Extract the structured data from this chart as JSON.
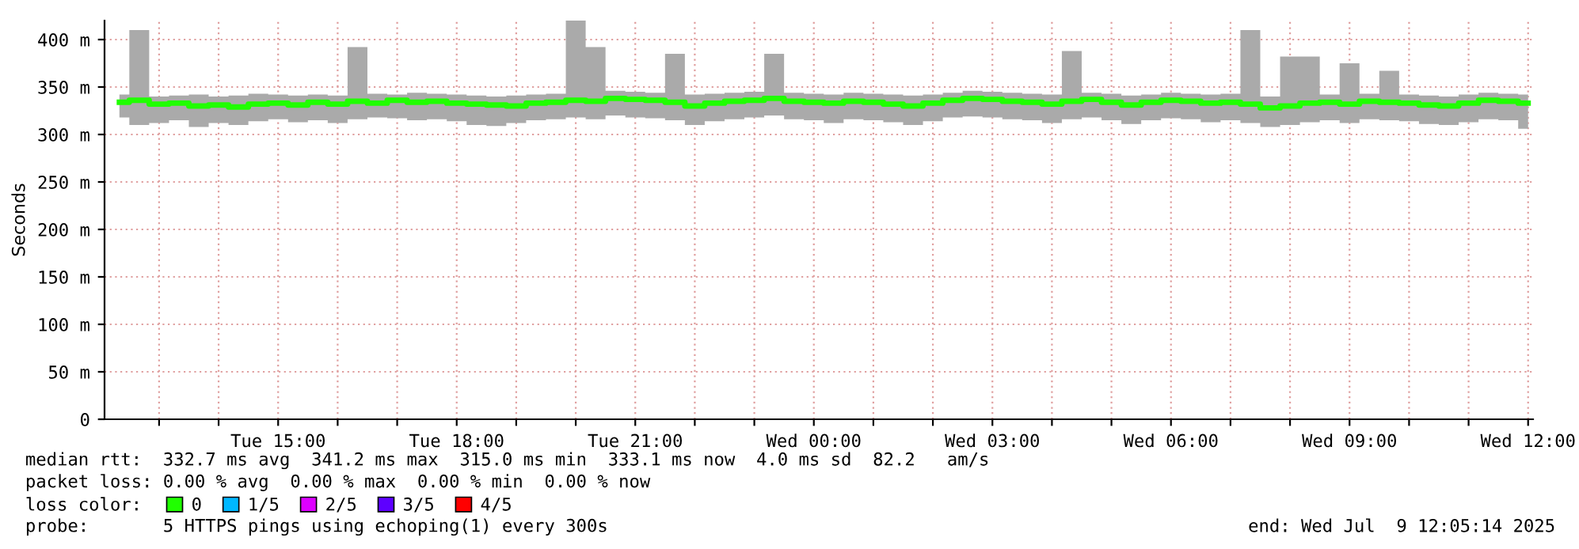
{
  "chart_data": {
    "type": "step",
    "ylabel": "Seconds",
    "x": [
      "2025-07-08T12:20",
      "2025-07-08T12:40",
      "2025-07-08T13:00",
      "2025-07-08T13:20",
      "2025-07-08T13:40",
      "2025-07-08T14:00",
      "2025-07-08T14:20",
      "2025-07-08T14:40",
      "2025-07-08T15:00",
      "2025-07-08T15:20",
      "2025-07-08T15:40",
      "2025-07-08T16:00",
      "2025-07-08T16:20",
      "2025-07-08T16:40",
      "2025-07-08T17:00",
      "2025-07-08T17:20",
      "2025-07-08T17:40",
      "2025-07-08T18:00",
      "2025-07-08T18:20",
      "2025-07-08T18:40",
      "2025-07-08T19:00",
      "2025-07-08T19:20",
      "2025-07-08T19:40",
      "2025-07-08T20:00",
      "2025-07-08T20:20",
      "2025-07-08T20:40",
      "2025-07-08T21:00",
      "2025-07-08T21:20",
      "2025-07-08T21:40",
      "2025-07-08T22:00",
      "2025-07-08T22:20",
      "2025-07-08T22:40",
      "2025-07-08T23:00",
      "2025-07-08T23:20",
      "2025-07-08T23:40",
      "2025-07-09T00:00",
      "2025-07-09T00:20",
      "2025-07-09T00:40",
      "2025-07-09T01:00",
      "2025-07-09T01:20",
      "2025-07-09T01:40",
      "2025-07-09T02:00",
      "2025-07-09T02:20",
      "2025-07-09T02:40",
      "2025-07-09T03:00",
      "2025-07-09T03:20",
      "2025-07-09T03:40",
      "2025-07-09T04:00",
      "2025-07-09T04:20",
      "2025-07-09T04:40",
      "2025-07-09T05:00",
      "2025-07-09T05:20",
      "2025-07-09T05:40",
      "2025-07-09T06:00",
      "2025-07-09T06:20",
      "2025-07-09T06:40",
      "2025-07-09T07:00",
      "2025-07-09T07:20",
      "2025-07-09T07:40",
      "2025-07-09T08:00",
      "2025-07-09T08:20",
      "2025-07-09T08:40",
      "2025-07-09T09:00",
      "2025-07-09T09:20",
      "2025-07-09T09:40",
      "2025-07-09T10:00",
      "2025-07-09T10:20",
      "2025-07-09T10:40",
      "2025-07-09T11:00",
      "2025-07-09T11:20",
      "2025-07-09T11:40",
      "2025-07-09T12:00"
    ],
    "series": [
      {
        "name": "0",
        "color": "#20ff00",
        "values": [
          334,
          336,
          332,
          333,
          330,
          331,
          329,
          332,
          333,
          331,
          334,
          332,
          335,
          333,
          336,
          334,
          335,
          333,
          332,
          331,
          330,
          333,
          334,
          336,
          335,
          338,
          337,
          336,
          334,
          330,
          333,
          335,
          336,
          338,
          335,
          334,
          333,
          335,
          334,
          332,
          330,
          333,
          336,
          338,
          337,
          335,
          334,
          332,
          335,
          337,
          334,
          331,
          334,
          336,
          335,
          333,
          334,
          332,
          328,
          330,
          333,
          334,
          332,
          335,
          334,
          333,
          331,
          330,
          333,
          336,
          335,
          333
        ],
        "lower": [
          318,
          310,
          312,
          315,
          308,
          312,
          310,
          314,
          316,
          313,
          315,
          312,
          316,
          318,
          317,
          315,
          316,
          314,
          310,
          309,
          312,
          315,
          316,
          318,
          316,
          320,
          318,
          317,
          315,
          310,
          314,
          316,
          318,
          320,
          316,
          315,
          312,
          316,
          315,
          313,
          310,
          314,
          318,
          319,
          318,
          316,
          315,
          312,
          316,
          318,
          315,
          311,
          315,
          317,
          316,
          313,
          315,
          312,
          308,
          310,
          313,
          315,
          312,
          316,
          315,
          314,
          311,
          310,
          313,
          316,
          315,
          306
        ],
        "upper": [
          342,
          410,
          340,
          341,
          342,
          340,
          341,
          343,
          342,
          341,
          342,
          341,
          392,
          343,
          342,
          344,
          343,
          342,
          341,
          340,
          341,
          342,
          343,
          420,
          392,
          346,
          345,
          344,
          385,
          342,
          343,
          344,
          345,
          385,
          344,
          343,
          342,
          344,
          343,
          342,
          341,
          342,
          344,
          346,
          345,
          344,
          343,
          342,
          388,
          344,
          343,
          341,
          342,
          344,
          343,
          342,
          343,
          410,
          340,
          382,
          382,
          342,
          375,
          343,
          367,
          342,
          341,
          340,
          342,
          344,
          343,
          342
        ]
      },
      {
        "name": "1/5",
        "color": "#00b8ff",
        "values": [
          null,
          null,
          null,
          null,
          null,
          null,
          null,
          null,
          null,
          null,
          null,
          null,
          null,
          null,
          null,
          null,
          null,
          null,
          null,
          null,
          null,
          null,
          null,
          null,
          null,
          null,
          null,
          null,
          null,
          null,
          null,
          null,
          null,
          null,
          null,
          null,
          null,
          null,
          null,
          null,
          null,
          null,
          null,
          null,
          null,
          null,
          null,
          null,
          null,
          null,
          null,
          null,
          null,
          null,
          null,
          null,
          null,
          null,
          null,
          null,
          null,
          null,
          null,
          null,
          null,
          null,
          null,
          null,
          null,
          null,
          null,
          null
        ]
      },
      {
        "name": "2/5",
        "color": "#dd00ff",
        "values": [
          null,
          null,
          null,
          null,
          null,
          null,
          null,
          null,
          null,
          null,
          null,
          null,
          null,
          null,
          null,
          null,
          null,
          null,
          null,
          null,
          null,
          null,
          null,
          null,
          null,
          null,
          null,
          null,
          null,
          null,
          null,
          null,
          null,
          null,
          null,
          null,
          null,
          null,
          null,
          null,
          null,
          null,
          null,
          null,
          null,
          null,
          null,
          null,
          null,
          null,
          null,
          null,
          null,
          null,
          null,
          null,
          null,
          null,
          null,
          null,
          null,
          null,
          null,
          null,
          null,
          null,
          null,
          null,
          null,
          null,
          null,
          null
        ]
      },
      {
        "name": "3/5",
        "color": "#5e00ff",
        "values": [
          null,
          null,
          null,
          null,
          null,
          null,
          null,
          null,
          null,
          null,
          null,
          null,
          null,
          null,
          null,
          null,
          null,
          null,
          null,
          null,
          null,
          null,
          null,
          null,
          null,
          null,
          null,
          null,
          null,
          null,
          null,
          null,
          null,
          null,
          null,
          null,
          null,
          null,
          null,
          null,
          null,
          null,
          null,
          null,
          null,
          null,
          null,
          null,
          null,
          null,
          null,
          null,
          null,
          null,
          null,
          null,
          null,
          null,
          null,
          null,
          null,
          null,
          null,
          null,
          null,
          null,
          null,
          null,
          null,
          null,
          null,
          null
        ]
      },
      {
        "name": "4/5",
        "color": "#ff0000",
        "values": [
          null,
          null,
          null,
          null,
          null,
          null,
          null,
          null,
          null,
          null,
          null,
          null,
          null,
          null,
          null,
          null,
          null,
          null,
          null,
          null,
          null,
          null,
          null,
          null,
          null,
          null,
          null,
          null,
          null,
          null,
          null,
          null,
          null,
          null,
          null,
          null,
          null,
          null,
          null,
          null,
          null,
          null,
          null,
          null,
          null,
          null,
          null,
          null,
          null,
          null,
          null,
          null,
          null,
          null,
          null,
          null,
          null,
          null,
          null,
          null,
          null,
          null,
          null,
          null,
          null,
          null,
          null,
          null,
          null,
          null,
          null,
          null
        ]
      }
    ],
    "legend": "bottom",
    "legend_title": "loss color:",
    "xlim": [
      "2025-07-08T12:05",
      "2025-07-09T12:05"
    ],
    "xticks": [
      {
        "value": "2025-07-08T13:00",
        "label": null
      },
      {
        "value": "2025-07-08T14:00",
        "label": null
      },
      {
        "value": "2025-07-08T15:00",
        "label": "Tue 15:00"
      },
      {
        "value": "2025-07-08T16:00",
        "label": null
      },
      {
        "value": "2025-07-08T17:00",
        "label": null
      },
      {
        "value": "2025-07-08T18:00",
        "label": "Tue 18:00"
      },
      {
        "value": "2025-07-08T19:00",
        "label": null
      },
      {
        "value": "2025-07-08T20:00",
        "label": null
      },
      {
        "value": "2025-07-08T21:00",
        "label": "Tue 21:00"
      },
      {
        "value": "2025-07-08T22:00",
        "label": null
      },
      {
        "value": "2025-07-08T23:00",
        "label": null
      },
      {
        "value": "2025-07-09T00:00",
        "label": "Wed 00:00"
      },
      {
        "value": "2025-07-09T01:00",
        "label": null
      },
      {
        "value": "2025-07-09T02:00",
        "label": null
      },
      {
        "value": "2025-07-09T03:00",
        "label": "Wed 03:00"
      },
      {
        "value": "2025-07-09T04:00",
        "label": null
      },
      {
        "value": "2025-07-09T05:00",
        "label": null
      },
      {
        "value": "2025-07-09T06:00",
        "label": "Wed 06:00"
      },
      {
        "value": "2025-07-09T07:00",
        "label": null
      },
      {
        "value": "2025-07-09T08:00",
        "label": null
      },
      {
        "value": "2025-07-09T09:00",
        "label": "Wed 09:00"
      },
      {
        "value": "2025-07-09T10:00",
        "label": null
      },
      {
        "value": "2025-07-09T11:00",
        "label": null
      },
      {
        "value": "2025-07-09T12:00",
        "label": "Wed 12:00"
      }
    ],
    "ylim": [
      0,
      420
    ],
    "yticks": [
      0,
      {
        "value": 50,
        "label": "50 m"
      },
      {
        "value": 100,
        "label": "100 m"
      },
      {
        "value": 150,
        "label": "150 m"
      },
      {
        "value": 200,
        "label": "200 m"
      },
      {
        "value": 250,
        "label": "250 m"
      },
      {
        "value": 300,
        "label": "300 m"
      },
      {
        "value": 350,
        "label": "350 m"
      },
      {
        "value": 400,
        "label": "400 m"
      }
    ],
    "grid": true,
    "annotations": [
      "median rtt:  332.7 ms avg  341.2 ms max  315.0 ms min  333.1 ms now  4.0 ms sd  82.2   am/s",
      "packet loss: 0.00 % avg  0.00 % max  0.00 % min  0.00 % now",
      "probe:       5 HTTPS pings using echoping(1) every 300s",
      "end: Wed Jul  9 12:05:14 2025"
    ]
  }
}
